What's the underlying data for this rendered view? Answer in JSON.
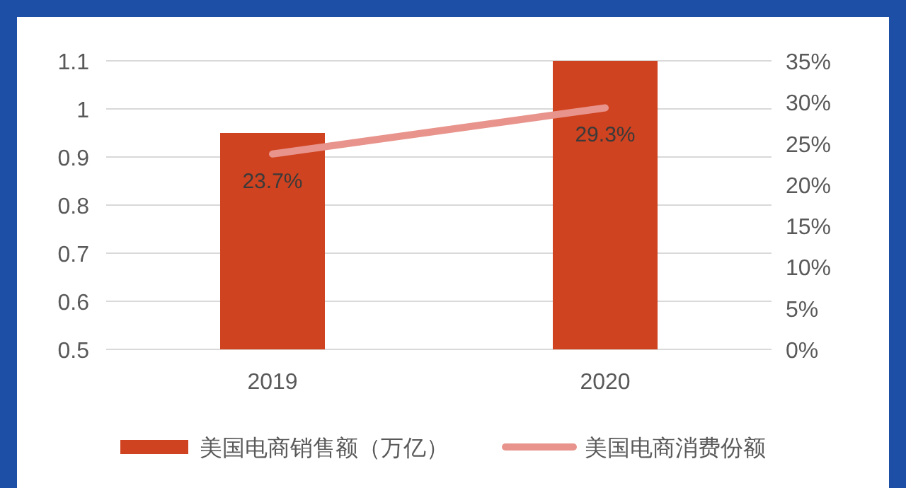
{
  "chart_data": {
    "type": "bar",
    "categories": [
      "2019",
      "2020"
    ],
    "series": [
      {
        "name": "美国电商销售额（万亿）",
        "color": "#cf4320",
        "values": [
          0.95,
          1.1
        ]
      },
      {
        "name": "美国电商消费份额",
        "type": "line",
        "axis": "y2",
        "color": "#e8948c",
        "values": [
          23.7,
          29.3
        ],
        "value_labels": [
          "23.7%",
          "29.3%"
        ]
      }
    ],
    "ylim": [
      0.5,
      1.1
    ],
    "yticks": [
      0.5,
      0.6,
      0.7,
      0.8,
      0.9,
      1,
      1.1
    ],
    "y2lim": [
      0,
      35
    ],
    "y2ticks": [
      {
        "value": 0,
        "label": "0%"
      },
      {
        "value": 5,
        "label": "5%"
      },
      {
        "value": 10,
        "label": "10%"
      },
      {
        "value": 15,
        "label": "15%"
      },
      {
        "value": 20,
        "label": "20%"
      },
      {
        "value": 25,
        "label": "25%"
      },
      {
        "value": 30,
        "label": "30%"
      },
      {
        "value": 35,
        "label": "35%"
      }
    ],
    "grid": "y",
    "legend": "bottom"
  }
}
